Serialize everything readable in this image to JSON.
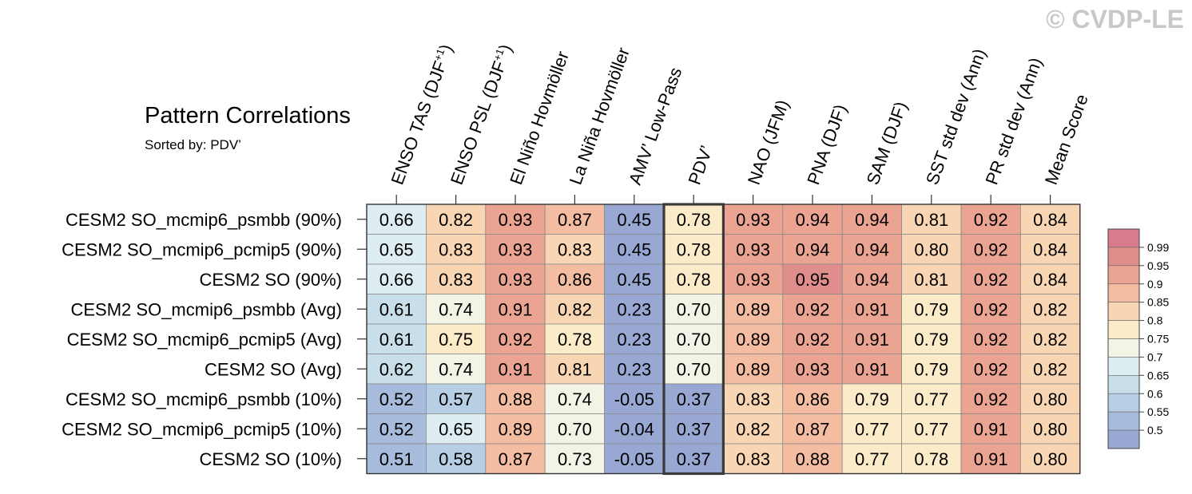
{
  "watermark": "© CVDP-LE",
  "chart_data": {
    "type": "heatmap",
    "title": "Pattern Correlations",
    "subtitle": "Sorted by: PDV’",
    "highlighted_column": "PDV’",
    "columns": [
      {
        "label": "ENSO TAS (DJF",
        "sup": "+1",
        "close": ")"
      },
      {
        "label": "ENSO PSL (DJF",
        "sup": "+1",
        "close": ")"
      },
      {
        "label": "El Niño Hovmöller",
        "sup": "",
        "close": ""
      },
      {
        "label": "La Niña Hovmöller",
        "sup": "",
        "close": ""
      },
      {
        "label": "AMV’ Low-Pass",
        "sup": "",
        "close": ""
      },
      {
        "label": "PDV’",
        "sup": "",
        "close": ""
      },
      {
        "label": "NAO (JFM)",
        "sup": "",
        "close": ""
      },
      {
        "label": "PNA (DJF)",
        "sup": "",
        "close": ""
      },
      {
        "label": "SAM (DJF)",
        "sup": "",
        "close": ""
      },
      {
        "label": "SST std dev (Ann)",
        "sup": "",
        "close": ""
      },
      {
        "label": "PR std dev (Ann)",
        "sup": "",
        "close": ""
      },
      {
        "label": "Mean Score",
        "sup": "",
        "close": ""
      }
    ],
    "rows": [
      "CESM2 SO_mcmip6_psmbb (90%)",
      "CESM2 SO_mcmip6_pcmip5 (90%)",
      "CESM2 SO (90%)",
      "CESM2 SO_mcmip6_psmbb (Avg)",
      "CESM2 SO_mcmip6_pcmip5 (Avg)",
      "CESM2 SO (Avg)",
      "CESM2 SO_mcmip6_psmbb (10%)",
      "CESM2 SO_mcmip6_pcmip5 (10%)",
      "CESM2 SO (10%)"
    ],
    "values": [
      [
        "0.66",
        "0.82",
        "0.93",
        "0.87",
        "0.45",
        "0.78",
        "0.93",
        "0.94",
        "0.94",
        "0.81",
        "0.92",
        "0.84"
      ],
      [
        "0.65",
        "0.83",
        "0.93",
        "0.83",
        "0.45",
        "0.78",
        "0.93",
        "0.94",
        "0.94",
        "0.80",
        "0.92",
        "0.84"
      ],
      [
        "0.66",
        "0.83",
        "0.93",
        "0.86",
        "0.45",
        "0.78",
        "0.93",
        "0.95",
        "0.94",
        "0.81",
        "0.92",
        "0.84"
      ],
      [
        "0.61",
        "0.74",
        "0.91",
        "0.82",
        "0.23",
        "0.70",
        "0.89",
        "0.92",
        "0.91",
        "0.79",
        "0.92",
        "0.82"
      ],
      [
        "0.61",
        "0.75",
        "0.92",
        "0.78",
        "0.23",
        "0.70",
        "0.89",
        "0.92",
        "0.91",
        "0.79",
        "0.92",
        "0.82"
      ],
      [
        "0.62",
        "0.74",
        "0.91",
        "0.81",
        "0.23",
        "0.70",
        "0.89",
        "0.93",
        "0.91",
        "0.79",
        "0.92",
        "0.82"
      ],
      [
        "0.52",
        "0.57",
        "0.88",
        "0.74",
        "-0.05",
        "0.37",
        "0.83",
        "0.86",
        "0.79",
        "0.77",
        "0.92",
        "0.80"
      ],
      [
        "0.52",
        "0.65",
        "0.89",
        "0.70",
        "-0.04",
        "0.37",
        "0.82",
        "0.87",
        "0.77",
        "0.77",
        "0.91",
        "0.80"
      ],
      [
        "0.51",
        "0.58",
        "0.87",
        "0.73",
        "-0.05",
        "0.37",
        "0.83",
        "0.88",
        "0.77",
        "0.78",
        "0.91",
        "0.80"
      ]
    ],
    "colorbar": {
      "levels": [
        "0.99",
        "0.95",
        "0.9",
        "0.85",
        "0.8",
        "0.75",
        "0.7",
        "0.65",
        "0.6",
        "0.55",
        "0.5"
      ],
      "bins": [
        {
          "min": 0.99,
          "max": 1.0,
          "color": "#d77b8d"
        },
        {
          "min": 0.95,
          "max": 0.99,
          "color": "#e08e8c"
        },
        {
          "min": 0.9,
          "max": 0.95,
          "color": "#eba392"
        },
        {
          "min": 0.85,
          "max": 0.9,
          "color": "#f4bda2"
        },
        {
          "min": 0.8,
          "max": 0.85,
          "color": "#f9d6b3"
        },
        {
          "min": 0.75,
          "max": 0.8,
          "color": "#fcebc8"
        },
        {
          "min": 0.7,
          "max": 0.75,
          "color": "#f3f3e6"
        },
        {
          "min": 0.65,
          "max": 0.7,
          "color": "#deedf2"
        },
        {
          "min": 0.6,
          "max": 0.65,
          "color": "#c8dfea"
        },
        {
          "min": 0.55,
          "max": 0.6,
          "color": "#b7cfe4"
        },
        {
          "min": 0.5,
          "max": 0.55,
          "color": "#a7bcdc"
        },
        {
          "min": -1.0,
          "max": 0.5,
          "color": "#98a8d2"
        }
      ]
    }
  }
}
